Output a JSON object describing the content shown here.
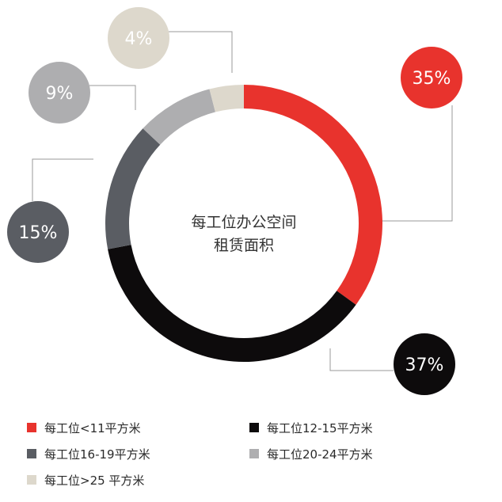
{
  "chart_data": {
    "type": "pie",
    "style": "donut",
    "center_title_lines": [
      "每工位办公空间",
      "租赁面积"
    ],
    "slices": [
      {
        "label": "每工位<11平方米",
        "value": 35,
        "display": "35%",
        "color": "#e8332d"
      },
      {
        "label": "每工位12-15平方米",
        "value": 37,
        "display": "37%",
        "color": "#0d0b0c"
      },
      {
        "label": "每工位16-19平方米",
        "value": 15,
        "display": "15%",
        "color": "#5a5d63"
      },
      {
        "label": "每工位20-24平方米",
        "value": 9,
        "display": "9%",
        "color": "#aeaeb0"
      },
      {
        "label": "每工位>25 平方米",
        "value": 4,
        "display": "4%",
        "color": "#ddd8cc"
      }
    ],
    "legend_position": "bottom",
    "colors": {
      "leader": "#9a9a9a",
      "text_on_bubble": "#ffffff"
    }
  }
}
